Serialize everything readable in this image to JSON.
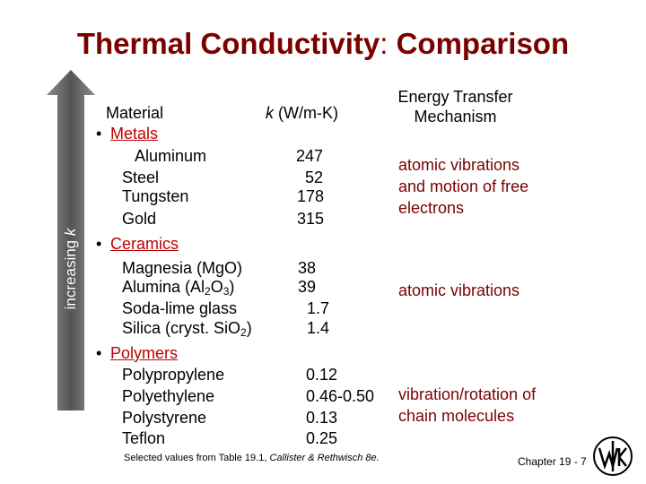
{
  "title": {
    "main": "Thermal Conductivity",
    "colon": ":",
    "rest": " Comparison"
  },
  "arrow_label": {
    "prefix": "increasing ",
    "var": "k"
  },
  "headers": {
    "material": "Material",
    "k_var": "k",
    "k_unit": " (W/m-K)",
    "mechanism_line1": "Energy Transfer",
    "mechanism_line2": "Mechanism"
  },
  "groups": {
    "metals": {
      "label": "Metals",
      "items": [
        {
          "name": "Aluminum",
          "k": "247"
        },
        {
          "name": "Steel",
          "k": "52"
        },
        {
          "name": "Tungsten",
          "k": "178"
        },
        {
          "name": "Gold",
          "k": "315"
        }
      ],
      "mechanism": [
        "atomic vibrations",
        "and motion of free",
        "electrons"
      ]
    },
    "ceramics": {
      "label": "Ceramics",
      "items": [
        {
          "name": "Magnesia (MgO)",
          "k": "38"
        },
        {
          "name_pre": "Alumina (Al",
          "sub1": "2",
          "name_mid": "O",
          "sub2": "3",
          "name_post": ")",
          "k": "39"
        },
        {
          "name": "Soda-lime glass",
          "k": "1.7"
        },
        {
          "name_pre": "Silica (cryst. SiO",
          "sub1": "2",
          "name_post": ")",
          "k": "1.4"
        }
      ],
      "mechanism": [
        "atomic vibrations"
      ]
    },
    "polymers": {
      "label": "Polymers",
      "items": [
        {
          "name": "Polypropylene",
          "k": "0.12"
        },
        {
          "name": "Polyethylene",
          "k": "0.46-0.50"
        },
        {
          "name": "Polystyrene",
          "k": "0.13"
        },
        {
          "name": "Teflon",
          "k": "0.25"
        }
      ],
      "mechanism": [
        "vibration/rotation of",
        "chain molecules"
      ]
    }
  },
  "footnote": {
    "text": "Selected values from Table 19.1, ",
    "ref": "Callister & Rethwisch 8e."
  },
  "chapter": "Chapter 19 - 7",
  "colors": {
    "title": "#7a0000",
    "group_label": "#c00000",
    "arrow": "#666666"
  }
}
